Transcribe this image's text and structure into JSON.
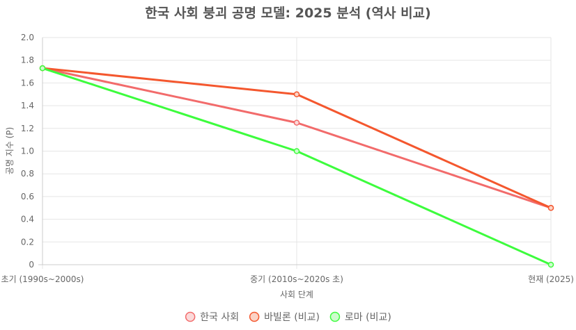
{
  "chart_data": {
    "type": "line",
    "title": "한국 사회 붕괴 공명 모델: 2025 분석 (역사 비교)",
    "xlabel": "사회 단계",
    "ylabel": "공명 지수 (P)",
    "categories": [
      "초기 (1990s~2000s)",
      "중기 (2010s~2020s 초)",
      "현재 (2025)"
    ],
    "ylim": [
      0,
      2.0
    ],
    "yticks": [
      "0",
      "0.2",
      "0.4",
      "0.6",
      "0.8",
      "1.0",
      "1.2",
      "1.4",
      "1.6",
      "1.8",
      "2.0"
    ],
    "grid": true,
    "legend_position": "bottom",
    "series": [
      {
        "name": "한국 사회",
        "values": [
          1.73,
          1.25,
          0.5
        ],
        "color": "#f26b6b",
        "fill": "#fbd9d9"
      },
      {
        "name": "바빌론 (비교)",
        "values": [
          1.73,
          1.5,
          0.5
        ],
        "color": "#f4572e",
        "fill": "#fbd3c6"
      },
      {
        "name": "로마 (비교)",
        "values": [
          1.73,
          1.0,
          0.0
        ],
        "color": "#3dfc3d",
        "fill": "#cdfccd"
      }
    ]
  }
}
